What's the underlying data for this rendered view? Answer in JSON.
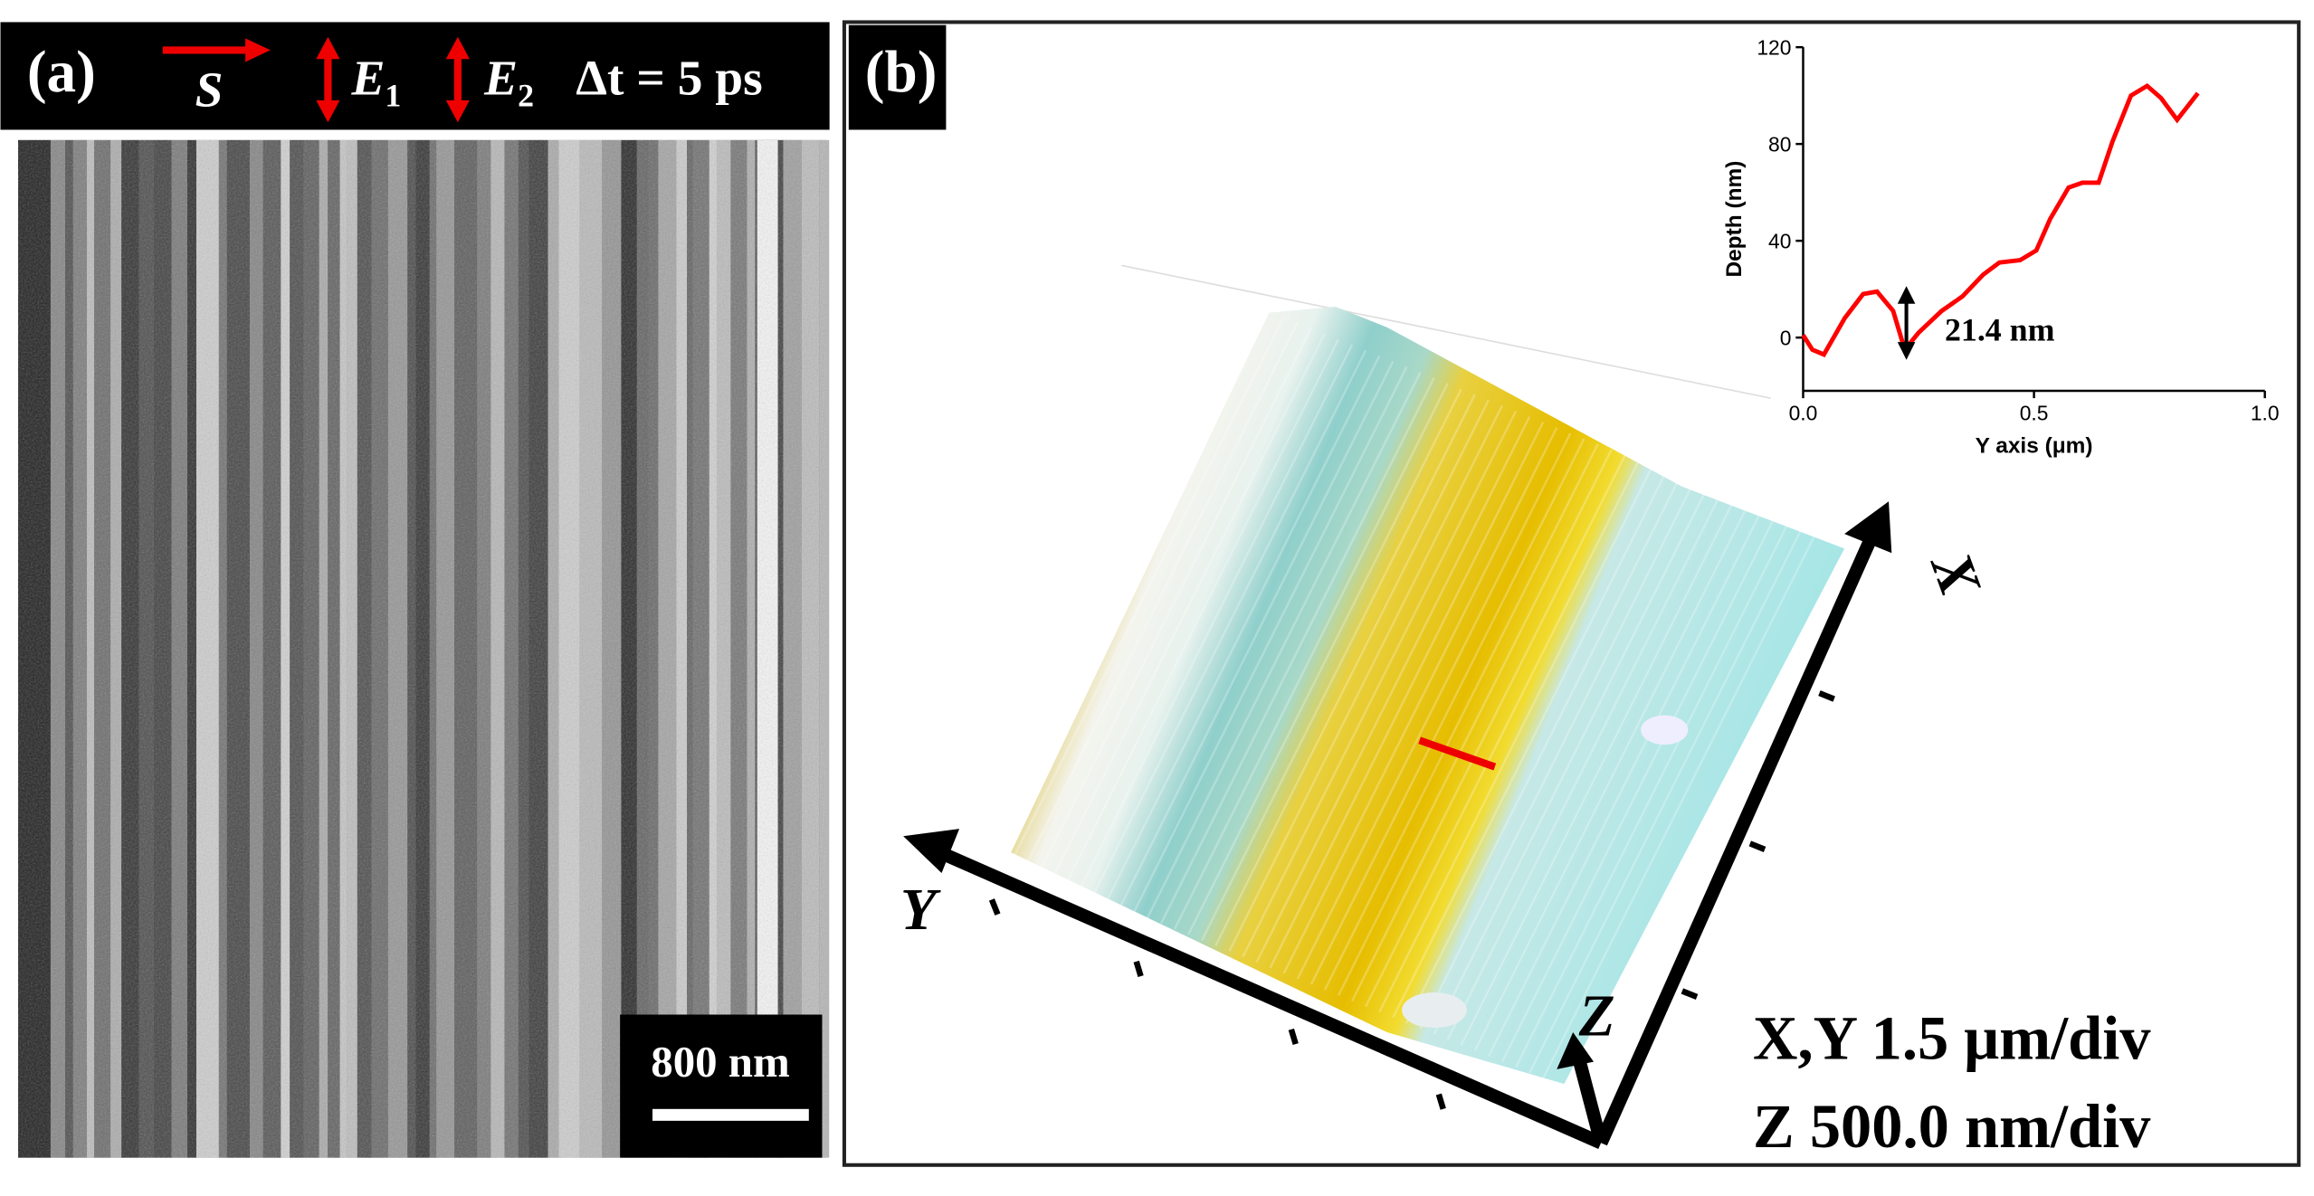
{
  "panel_a": {
    "label": "(a)",
    "s_label": "S",
    "e1": {
      "symbol": "E",
      "subscript": "1"
    },
    "e2": {
      "symbol": "E",
      "subscript": "2"
    },
    "delay": "Δt = 5 ps",
    "scale_bar": "800 nm"
  },
  "panel_b": {
    "label": "(b)",
    "axis_x": "X",
    "axis_y": "Y",
    "axis_z": "Z",
    "xy_scale": "X,Y 1.5 μm/div",
    "z_scale": "Z 500.0 nm/div"
  },
  "chart_data": {
    "type": "line",
    "x_label": "Y axis (μm)",
    "y_label": "Depth (nm)",
    "annotation": "21.4 nm",
    "xlim": [
      0,
      1
    ],
    "xticks": [
      {
        "value": 0,
        "label": "0.0"
      },
      {
        "value": 0.5,
        "label": "0.5"
      },
      {
        "value": 1,
        "label": "1.0"
      }
    ],
    "ylim": [
      -22,
      120
    ],
    "yticks": [
      0,
      40,
      80,
      120
    ],
    "series": [
      {
        "color": "#ff0000",
        "x": [
          0,
          0.02,
          0.045,
          0.09,
          0.13,
          0.16,
          0.195,
          0.22,
          0.25,
          0.3,
          0.345,
          0.39,
          0.425,
          0.47,
          0.505,
          0.535,
          0.575,
          0.605,
          0.64,
          0.67,
          0.71,
          0.745,
          0.775,
          0.81,
          0.855
        ],
        "values": [
          1,
          -5,
          -7,
          8,
          18,
          19,
          11,
          -5,
          2,
          11,
          17,
          26,
          31,
          32,
          36,
          49,
          62,
          64,
          64,
          81,
          100,
          104,
          99,
          90,
          101
        ]
      }
    ]
  }
}
